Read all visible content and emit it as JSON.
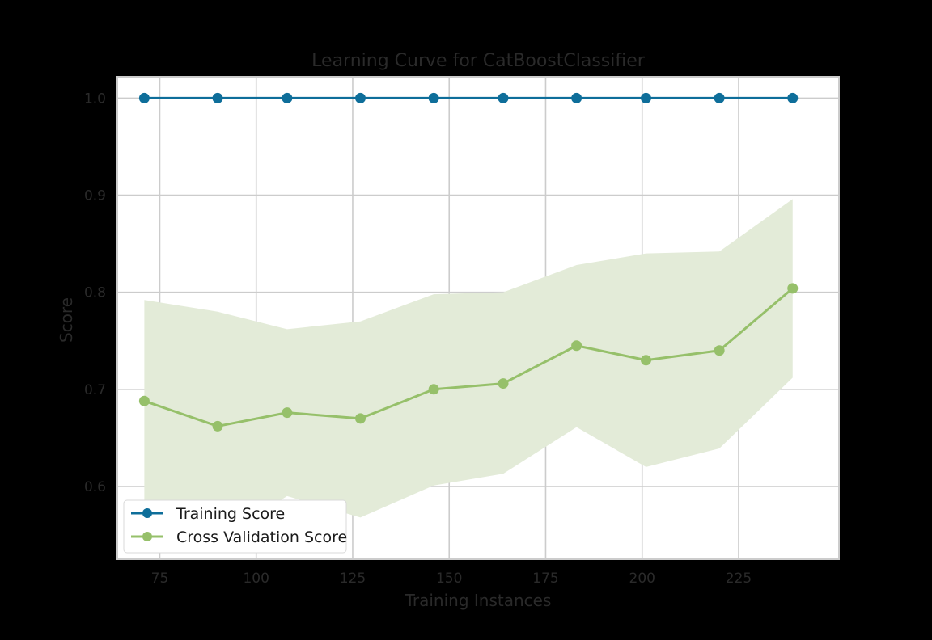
{
  "chart_data": {
    "type": "line",
    "title": "Learning Curve for CatBoostClassifier",
    "xlabel": "Training Instances",
    "ylabel": "Score",
    "xlim": [
      64,
      251
    ],
    "ylim": [
      0.525,
      1.022
    ],
    "xticks": [
      75,
      100,
      125,
      150,
      175,
      200,
      225
    ],
    "yticks": [
      0.6,
      0.7,
      0.8,
      0.9,
      1.0
    ],
    "ytick_labels": [
      "0.6",
      "0.7",
      "0.8",
      "0.9",
      "1.0"
    ],
    "grid": true,
    "legend_position": "lower-left",
    "x": [
      71,
      90,
      108,
      127,
      146,
      164,
      183,
      201,
      220,
      239
    ],
    "series": [
      {
        "name": "Training Score",
        "color": "#0e6e9a",
        "values": [
          1.0,
          1.0,
          1.0,
          1.0,
          1.0,
          1.0,
          1.0,
          1.0,
          1.0,
          1.0
        ],
        "band_lower": [
          1.0,
          1.0,
          1.0,
          1.0,
          1.0,
          1.0,
          1.0,
          1.0,
          1.0,
          1.0
        ],
        "band_upper": [
          1.0,
          1.0,
          1.0,
          1.0,
          1.0,
          1.0,
          1.0,
          1.0,
          1.0,
          1.0
        ]
      },
      {
        "name": "Cross Validation Score",
        "color": "#96c06a",
        "band_color": "#e3ebd8",
        "values": [
          0.688,
          0.662,
          0.676,
          0.67,
          0.7,
          0.706,
          0.745,
          0.73,
          0.74,
          0.804
        ],
        "band_lower": [
          0.584,
          0.545,
          0.59,
          0.568,
          0.601,
          0.613,
          0.661,
          0.62,
          0.639,
          0.712
        ],
        "band_upper": [
          0.792,
          0.78,
          0.762,
          0.77,
          0.798,
          0.8,
          0.828,
          0.84,
          0.842,
          0.896
        ]
      }
    ]
  }
}
